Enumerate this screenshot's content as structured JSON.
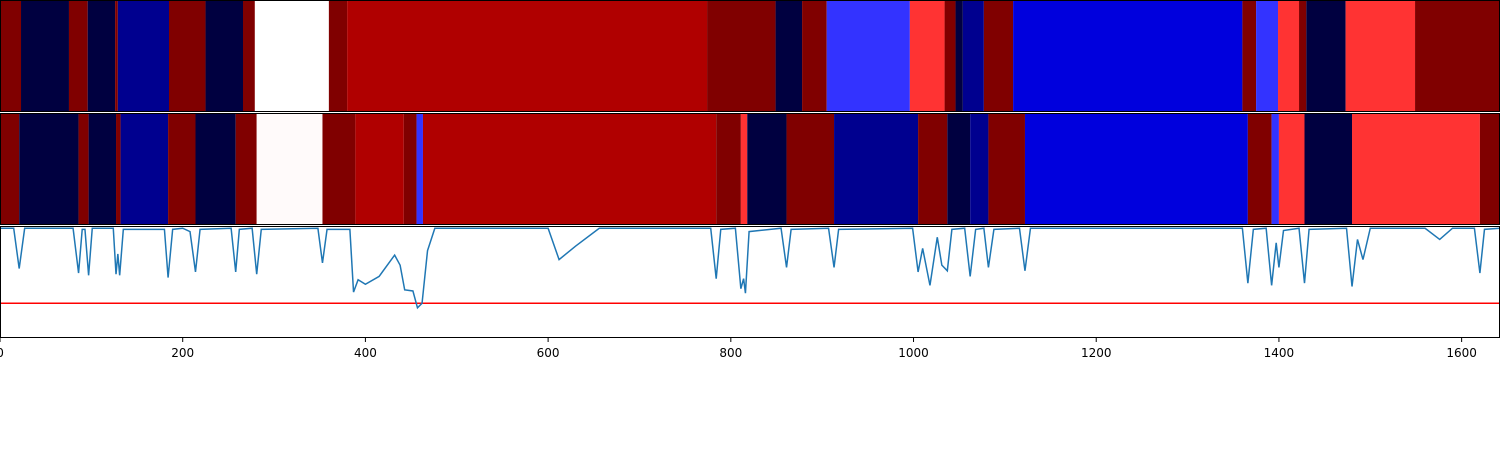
{
  "chart_data": [
    {
      "type": "segments",
      "segments": [
        {
          "start": 0,
          "end": 23,
          "color": "#800000"
        },
        {
          "start": 23,
          "end": 75.5,
          "color": "#000040"
        },
        {
          "start": 75.5,
          "end": 96,
          "color": "#800000"
        },
        {
          "start": 96,
          "end": 126,
          "color": "#000040"
        },
        {
          "start": 126,
          "end": 129,
          "color": "#800000"
        },
        {
          "start": 129,
          "end": 185,
          "color": "#00008f"
        },
        {
          "start": 185,
          "end": 225,
          "color": "#800000"
        },
        {
          "start": 225,
          "end": 266,
          "color": "#000040"
        },
        {
          "start": 266,
          "end": 279,
          "color": "#800000"
        },
        {
          "start": 279,
          "end": 360,
          "color": "#ffffff"
        },
        {
          "start": 360,
          "end": 380,
          "color": "#800000"
        },
        {
          "start": 380,
          "end": 774,
          "color": "#b00000"
        },
        {
          "start": 774,
          "end": 849,
          "color": "#800000"
        },
        {
          "start": 849,
          "end": 878,
          "color": "#000040"
        },
        {
          "start": 878,
          "end": 905,
          "color": "#800000"
        },
        {
          "start": 905,
          "end": 996,
          "color": "#3333ff"
        },
        {
          "start": 996,
          "end": 1034,
          "color": "#ff3333"
        },
        {
          "start": 1034,
          "end": 1046,
          "color": "#800000"
        },
        {
          "start": 1046,
          "end": 1054,
          "color": "#000040"
        },
        {
          "start": 1054,
          "end": 1077,
          "color": "#00008f"
        },
        {
          "start": 1077,
          "end": 1109,
          "color": "#800000"
        },
        {
          "start": 1109,
          "end": 1360,
          "color": "#0000dd"
        },
        {
          "start": 1360,
          "end": 1375,
          "color": "#800000"
        },
        {
          "start": 1375,
          "end": 1399,
          "color": "#3333ff"
        },
        {
          "start": 1399,
          "end": 1422,
          "color": "#ff3333"
        },
        {
          "start": 1422,
          "end": 1430,
          "color": "#800000"
        },
        {
          "start": 1430,
          "end": 1473,
          "color": "#000040"
        },
        {
          "start": 1473,
          "end": 1549,
          "color": "#ff3333"
        },
        {
          "start": 1549,
          "end": 1642,
          "color": "#800000"
        }
      ]
    },
    {
      "type": "segments",
      "segments": [
        {
          "start": 0,
          "end": 21,
          "color": "#800000"
        },
        {
          "start": 21,
          "end": 86,
          "color": "#000040"
        },
        {
          "start": 86,
          "end": 97,
          "color": "#800000"
        },
        {
          "start": 97,
          "end": 127,
          "color": "#000040"
        },
        {
          "start": 127,
          "end": 132,
          "color": "#800000"
        },
        {
          "start": 132,
          "end": 184,
          "color": "#00008f"
        },
        {
          "start": 184,
          "end": 214,
          "color": "#800000"
        },
        {
          "start": 214,
          "end": 258,
          "color": "#000040"
        },
        {
          "start": 258,
          "end": 281,
          "color": "#800000"
        },
        {
          "start": 281,
          "end": 353,
          "color": "#fffafa"
        },
        {
          "start": 353,
          "end": 389,
          "color": "#800000"
        },
        {
          "start": 389,
          "end": 442,
          "color": "#b00000"
        },
        {
          "start": 442,
          "end": 456,
          "color": "#800000"
        },
        {
          "start": 456,
          "end": 463,
          "color": "#3333ff"
        },
        {
          "start": 463,
          "end": 784,
          "color": "#b00000"
        },
        {
          "start": 784,
          "end": 811,
          "color": "#800000"
        },
        {
          "start": 811,
          "end": 818,
          "color": "#ff3333"
        },
        {
          "start": 818,
          "end": 861,
          "color": "#000040"
        },
        {
          "start": 861,
          "end": 913,
          "color": "#800000"
        },
        {
          "start": 913,
          "end": 1005,
          "color": "#00008f"
        },
        {
          "start": 1005,
          "end": 1037,
          "color": "#800000"
        },
        {
          "start": 1037,
          "end": 1062,
          "color": "#000040"
        },
        {
          "start": 1062,
          "end": 1082,
          "color": "#00008f"
        },
        {
          "start": 1082,
          "end": 1122,
          "color": "#800000"
        },
        {
          "start": 1122,
          "end": 1366,
          "color": "#0000dd"
        },
        {
          "start": 1366,
          "end": 1392,
          "color": "#800000"
        },
        {
          "start": 1392,
          "end": 1400,
          "color": "#3333ff"
        },
        {
          "start": 1400,
          "end": 1428,
          "color": "#ff3333"
        },
        {
          "start": 1428,
          "end": 1480,
          "color": "#000040"
        },
        {
          "start": 1480,
          "end": 1620,
          "color": "#ff3333"
        },
        {
          "start": 1620,
          "end": 1642,
          "color": "#800000"
        }
      ]
    },
    {
      "type": "line",
      "x": [
        0,
        15,
        21,
        27,
        80,
        86,
        90,
        93,
        97,
        101,
        124,
        127,
        129,
        131,
        135,
        180,
        184,
        189,
        200,
        208,
        214,
        219,
        253,
        258,
        262,
        276,
        281,
        286,
        348,
        353,
        358,
        383,
        387,
        392,
        400,
        415,
        432,
        438,
        443,
        452,
        457,
        462,
        468,
        476,
        600,
        612,
        630,
        656,
        778,
        784,
        789,
        805,
        811,
        814,
        816,
        820,
        855,
        861,
        866,
        907,
        913,
        918,
        999,
        1005,
        1010,
        1018,
        1026,
        1031,
        1037,
        1042,
        1056,
        1062,
        1068,
        1077,
        1082,
        1088,
        1116,
        1122,
        1128,
        1360,
        1366,
        1372,
        1386,
        1392,
        1397,
        1400,
        1405,
        1422,
        1428,
        1433,
        1474,
        1480,
        1486,
        1492,
        1500,
        1560,
        1576,
        1590,
        1614,
        1620,
        1625,
        1642
      ],
      "series": [
        {
          "color": "#1f77b4",
          "values": [
            0.98,
            0.98,
            0.62,
            0.98,
            0.98,
            0.58,
            0.97,
            0.97,
            0.56,
            0.98,
            0.98,
            0.57,
            0.75,
            0.56,
            0.97,
            0.97,
            0.54,
            0.97,
            0.98,
            0.95,
            0.59,
            0.97,
            0.98,
            0.59,
            0.97,
            0.98,
            0.57,
            0.97,
            0.98,
            0.67,
            0.97,
            0.97,
            0.41,
            0.52,
            0.48,
            0.55,
            0.74,
            0.65,
            0.43,
            0.42,
            0.27,
            0.31,
            0.78,
            0.98,
            0.98,
            0.7,
            0.82,
            0.98,
            0.98,
            0.53,
            0.97,
            0.98,
            0.44,
            0.53,
            0.4,
            0.95,
            0.98,
            0.63,
            0.97,
            0.98,
            0.63,
            0.97,
            0.98,
            0.59,
            0.8,
            0.47,
            0.9,
            0.65,
            0.6,
            0.97,
            0.98,
            0.55,
            0.97,
            0.98,
            0.63,
            0.97,
            0.98,
            0.6,
            0.98,
            0.98,
            0.49,
            0.97,
            0.98,
            0.47,
            0.85,
            0.63,
            0.96,
            0.98,
            0.49,
            0.97,
            0.98,
            0.46,
            0.88,
            0.7,
            0.98,
            0.98,
            0.88,
            0.98,
            0.98,
            0.58,
            0.97,
            0.98
          ]
        }
      ],
      "hline": {
        "value": 0.31,
        "color": "#ff0000"
      },
      "xlim": [
        0,
        1642
      ],
      "xticks": [
        0,
        200,
        400,
        600,
        800,
        1000,
        1200,
        1400,
        1600
      ],
      "ylim": [
        0,
        1
      ]
    }
  ]
}
